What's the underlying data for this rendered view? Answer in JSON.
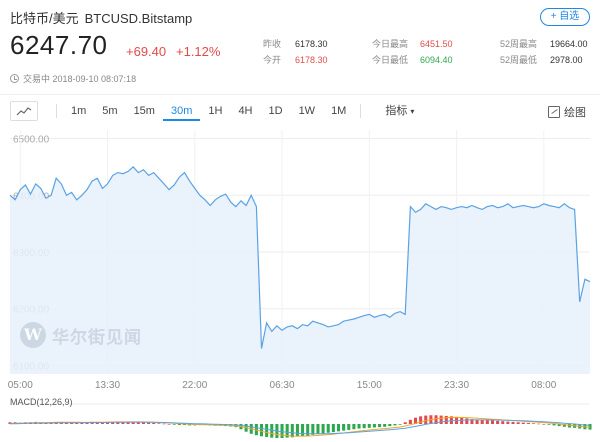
{
  "header": {
    "name": "比特币/美元",
    "symbol": "BTCUSD.Bitstamp",
    "follow_label": "+ 自选",
    "price": "6247.70",
    "change": "+69.40",
    "change_pct": "+1.12%",
    "status": "交易中 2018-09-10 08:07:18"
  },
  "stats": {
    "prev_close_label": "昨收",
    "prev_close": "6178.30",
    "open_label": "今开",
    "open": "6178.30",
    "high_label": "今日最高",
    "high": "6451.50",
    "low_label": "今日最低",
    "low": "6094.40",
    "w52_high_label": "52周最高",
    "w52_high": "19664.00",
    "w52_low_label": "52周最低",
    "w52_low": "2978.00"
  },
  "toolbar": {
    "timeframes": [
      "1m",
      "5m",
      "15m",
      "30m",
      "1H",
      "4H",
      "1D",
      "1W",
      "1M"
    ],
    "active_timeframe": "30m",
    "indicators_label": "指标",
    "draw_label": "绘图",
    "chart_type_icon": "line-chart-icon"
  },
  "watermark": {
    "logo_letter": "W",
    "text": "华尔街见闻"
  },
  "chart_data": {
    "type": "area",
    "title": "",
    "y_ticks": [
      "6500.00",
      "6400.00",
      "6300.00",
      "6200.00",
      "6100.00"
    ],
    "y_tick_values": [
      6500,
      6400,
      6300,
      6200,
      6100
    ],
    "ylim": [
      6085,
      6515
    ],
    "x_ticks": [
      "05:00",
      "13:30",
      "22:00",
      "06:30",
      "15:00",
      "23:30",
      "08:00"
    ],
    "x_tick_positions": [
      2,
      19,
      36,
      53,
      70,
      87,
      104
    ],
    "grid": true,
    "colors": {
      "line": "#5aa2e4",
      "fill": "#e6f1fb",
      "up": "#e34b4b",
      "down": "#2ea84f"
    },
    "price": [
      6400,
      6392,
      6410,
      6418,
      6402,
      6420,
      6412,
      6395,
      6400,
      6430,
      6420,
      6400,
      6405,
      6392,
      6400,
      6410,
      6425,
      6430,
      6412,
      6420,
      6435,
      6440,
      6438,
      6442,
      6450,
      6440,
      6445,
      6435,
      6440,
      6430,
      6420,
      6410,
      6418,
      6432,
      6440,
      6425,
      6412,
      6400,
      6392,
      6382,
      6392,
      6398,
      6402,
      6388,
      6380,
      6390,
      6382,
      6400,
      6380,
      6130,
      6175,
      6160,
      6170,
      6162,
      6168,
      6170,
      6165,
      6172,
      6170,
      6178,
      6175,
      6172,
      6168,
      6170,
      6172,
      6178,
      6180,
      6182,
      6185,
      6188,
      6190,
      6185,
      6188,
      6190,
      6185,
      6192,
      6195,
      6190,
      6380,
      6370,
      6375,
      6385,
      6380,
      6375,
      6380,
      6378,
      6375,
      6378,
      6380,
      6378,
      6382,
      6378,
      6375,
      6380,
      6382,
      6378,
      6380,
      6385,
      6378,
      6380,
      6382,
      6380,
      6378,
      6380,
      6385,
      6382,
      6380,
      6378,
      6385,
      6378,
      6375,
      6212,
      6252,
      6247.7
    ],
    "macd": {
      "label": "MACD(12,26,9)",
      "histogram": [
        0.5,
        0.5,
        0.4,
        0.5,
        0.5,
        0.6,
        0.5,
        0.4,
        0.5,
        0.6,
        0.6,
        0.5,
        0.5,
        0.4,
        0.4,
        0.5,
        0.6,
        0.6,
        0.5,
        0.6,
        0.7,
        0.7,
        0.7,
        0.6,
        0.6,
        0.5,
        0.5,
        0.4,
        0.3,
        0.2,
        0.1,
        0.0,
        -0.2,
        -0.3,
        -0.3,
        -0.4,
        -0.4,
        -0.3,
        -0.3,
        -0.4,
        -0.5,
        -0.5,
        -0.6,
        -0.7,
        -0.9,
        -1.5,
        -2.2,
        -2.8,
        -3.2,
        -3.5,
        -3.7,
        -3.9,
        -4.0,
        -4.0,
        -3.9,
        -3.8,
        -3.6,
        -3.5,
        -3.3,
        -3.1,
        -2.9,
        -2.7,
        -2.5,
        -2.3,
        -2.1,
        -1.9,
        -1.7,
        -1.5,
        -1.3,
        -1.2,
        -1.1,
        -1.0,
        -0.9,
        -0.8,
        -0.6,
        -0.4,
        -0.2,
        0.5,
        1.2,
        1.8,
        2.2,
        2.4,
        2.5,
        2.5,
        2.4,
        2.3,
        2.2,
        2.0,
        1.8,
        1.6,
        1.4,
        1.3,
        1.2,
        1.1,
        1.0,
        0.9,
        0.8,
        0.7,
        0.6,
        0.5,
        0.4,
        0.3,
        0.2,
        0.1,
        0.0,
        -0.2,
        -0.4,
        -0.6,
        -0.8,
        -1.0,
        -1.1,
        -1.3,
        -1.5,
        -1.6
      ]
    }
  }
}
